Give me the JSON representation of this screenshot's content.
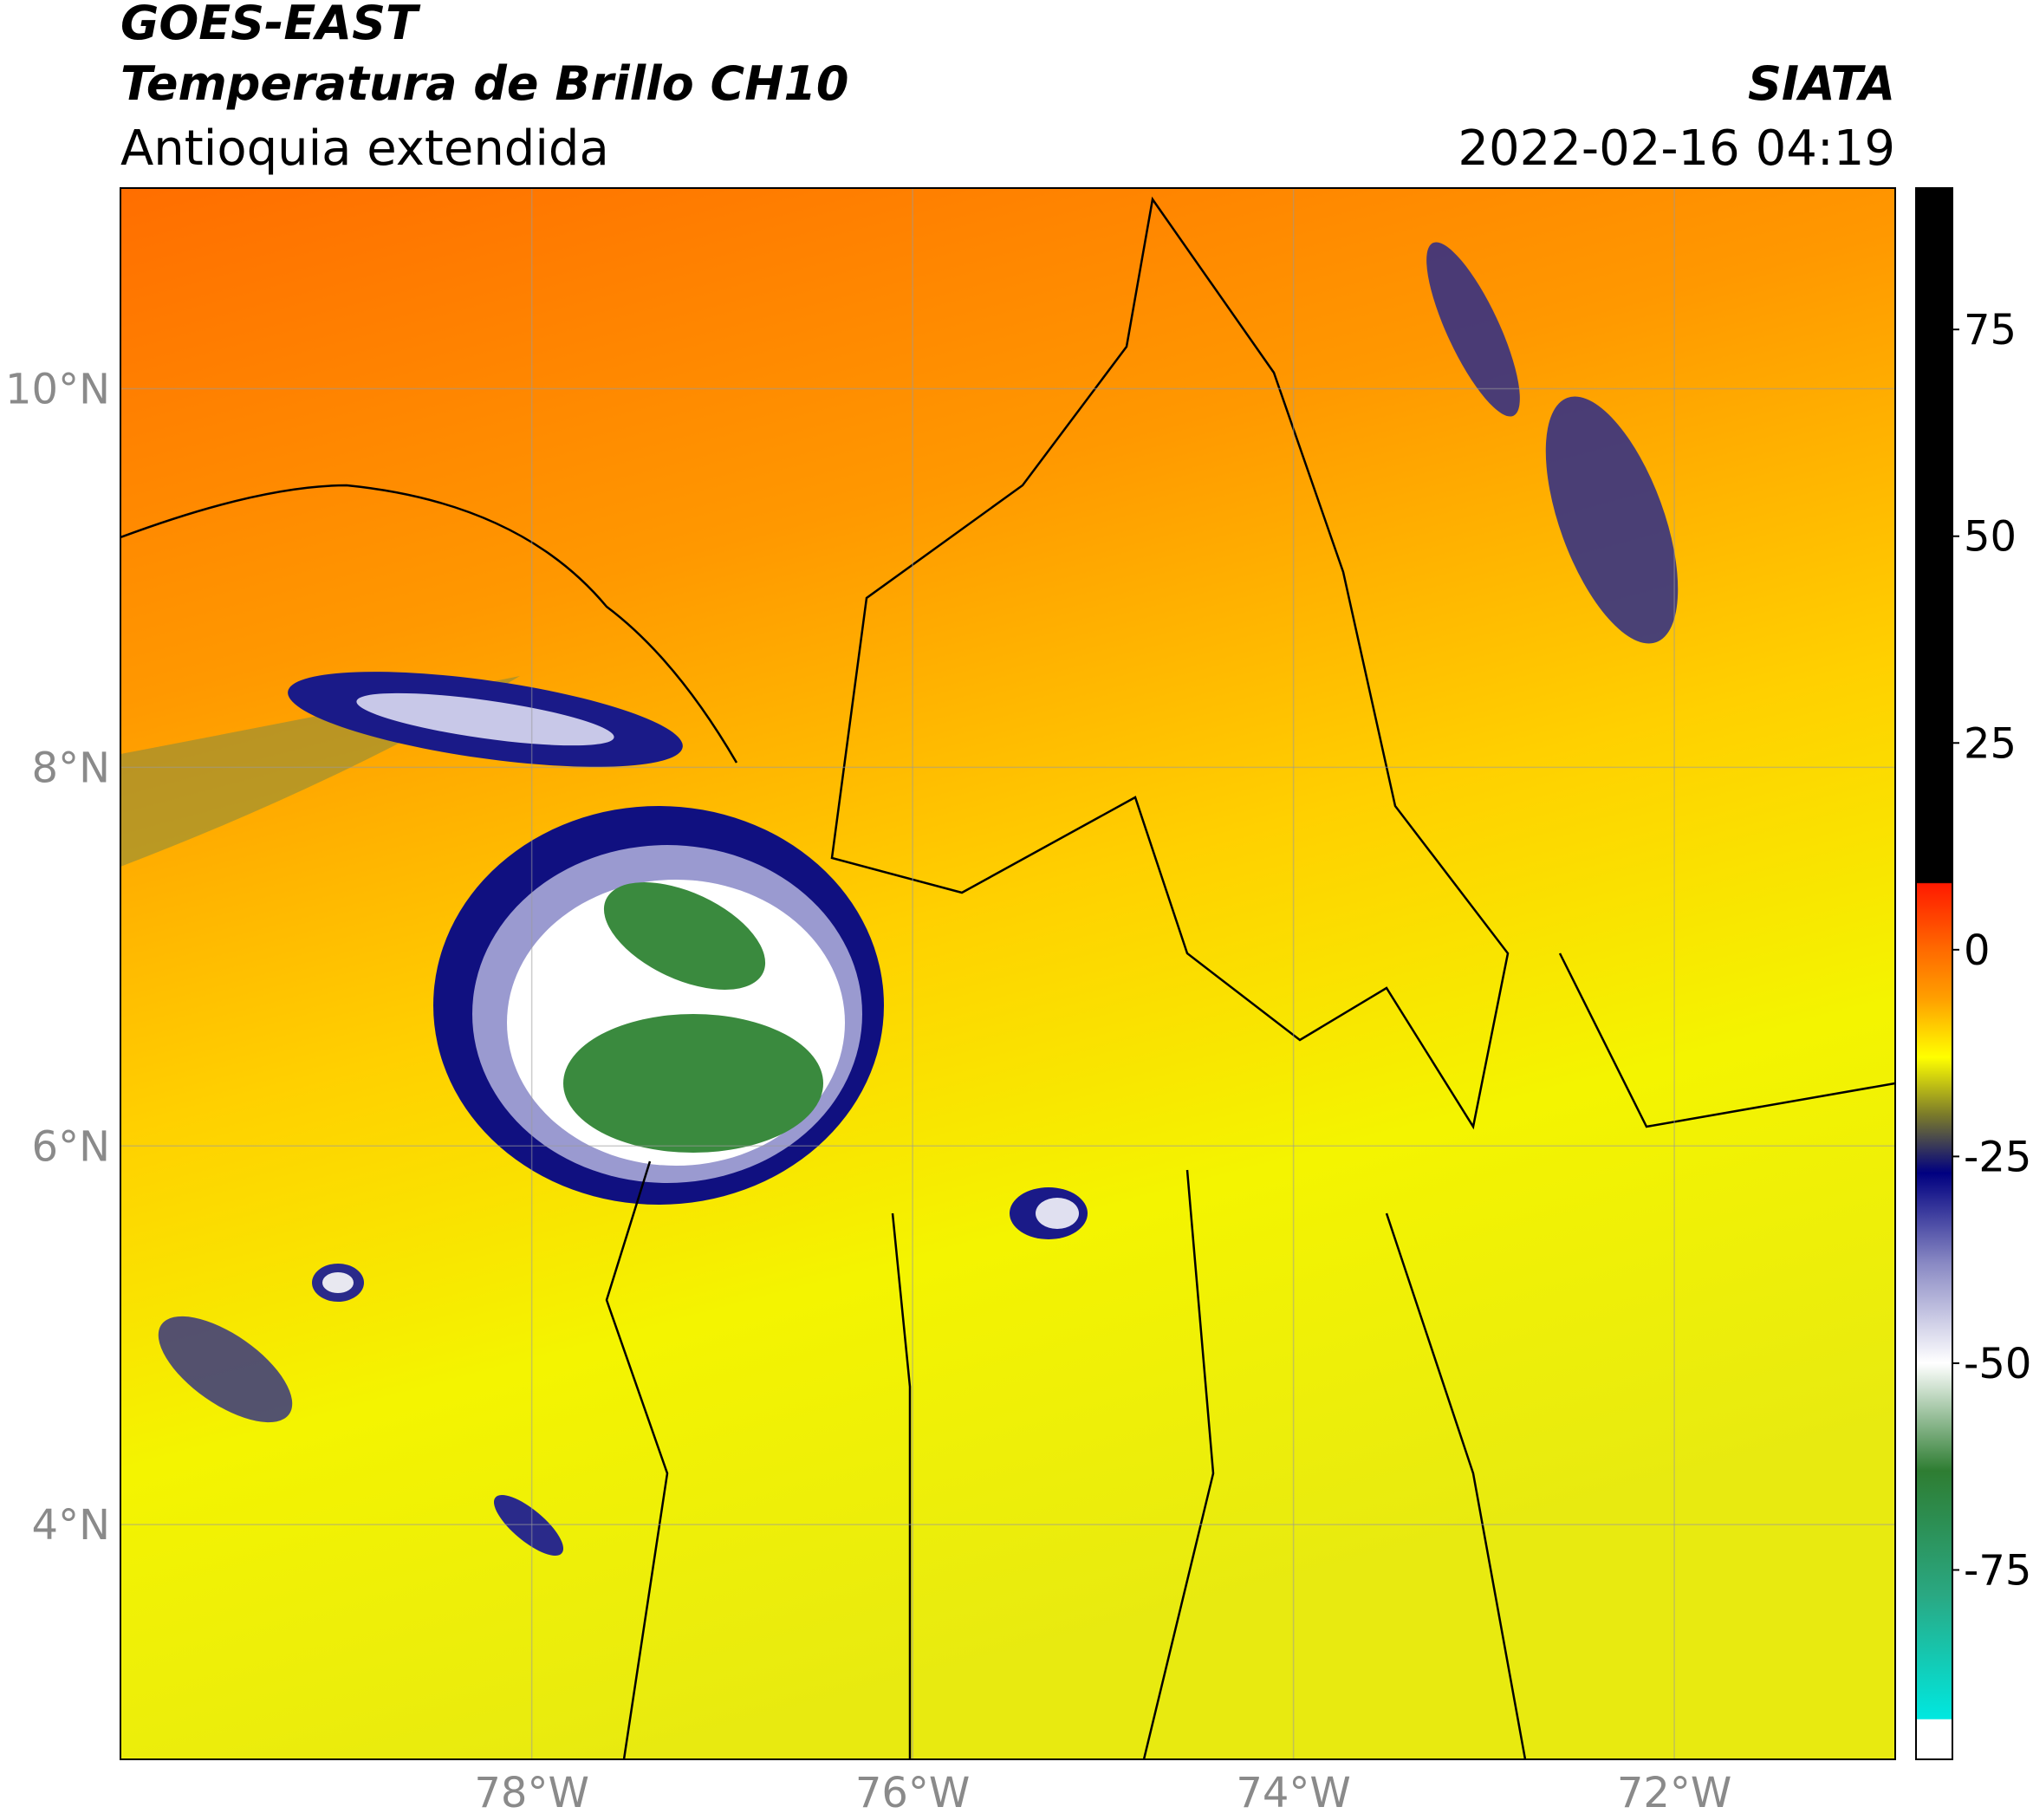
{
  "header": {
    "title_line1": "GOES-EAST",
    "title_line2": "Temperatura de Brillo CH10",
    "subtitle": "Antioquia extendida",
    "agency": "SIATA",
    "datetime": "2022-02-16 04:19"
  },
  "map": {
    "xlim": [
      -80.16,
      -70.84
    ],
    "ylim": [
      2.76,
      11.06
    ],
    "xticks": [
      {
        "value": -78,
        "label": "78°W"
      },
      {
        "value": -76,
        "label": "76°W"
      },
      {
        "value": -74,
        "label": "74°W"
      },
      {
        "value": -72,
        "label": "72°W"
      }
    ],
    "yticks": [
      {
        "value": 4,
        "label": "4°N"
      },
      {
        "value": 6,
        "label": "6°N"
      },
      {
        "value": 8,
        "label": "8°N"
      },
      {
        "value": 10,
        "label": "10°N"
      }
    ],
    "grid": true
  },
  "colorbar": {
    "lim": [
      -97.9,
      92.1
    ],
    "ticks": [
      -75,
      -50,
      -25,
      0,
      25,
      50,
      75
    ],
    "stops": [
      {
        "value": 92.1,
        "color": "#000000"
      },
      {
        "value": 8.1,
        "color": "#000000"
      },
      {
        "value": 8,
        "color": "#ff1a00"
      },
      {
        "value": 0,
        "color": "#ff6a00"
      },
      {
        "value": -6,
        "color": "#ffa000"
      },
      {
        "value": -13,
        "color": "#ffff00"
      },
      {
        "value": -20,
        "color": "#7a7a2a"
      },
      {
        "value": -27,
        "color": "#000080"
      },
      {
        "value": -38,
        "color": "#8a8ac4"
      },
      {
        "value": -50,
        "color": "#ffffff"
      },
      {
        "value": -63,
        "color": "#2e7d32"
      },
      {
        "value": -78,
        "color": "#2aa882"
      },
      {
        "value": -93,
        "color": "#00e8e0"
      },
      {
        "value": -93.1,
        "color": "#ffffff"
      },
      {
        "value": -97.9,
        "color": "#ffffff"
      }
    ]
  }
}
